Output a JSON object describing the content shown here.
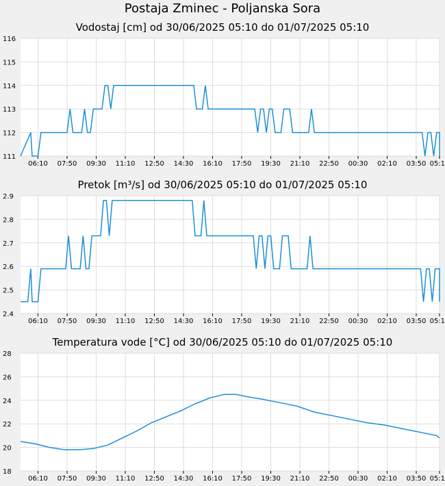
{
  "page": {
    "title": "Postaja Zminec - Poljanska Sora"
  },
  "colors": {
    "series": "#1a8fd6",
    "grid": "#dddddd",
    "plot_bg": "#ffffff",
    "page_bg": "#f0f0f0"
  },
  "chart_data": [
    {
      "type": "line",
      "title": "Vodostaj [cm] od 30/06/2025 05:10 do 01/07/2025 05:10",
      "xlabel": "",
      "ylabel": "",
      "xlim": [
        "05:10",
        "05:10"
      ],
      "x_ticks": [
        "06:10",
        "07:50",
        "09:30",
        "11:10",
        "12:50",
        "14:30",
        "16:10",
        "17:50",
        "19:30",
        "21:10",
        "22:50",
        "00:30",
        "02:10",
        "03:50",
        "05:10"
      ],
      "ylim": [
        111,
        116
      ],
      "y_ticks": [
        "116",
        "115",
        "114",
        "113",
        "112",
        "111"
      ],
      "grid": true,
      "legend": "none",
      "series": [
        {
          "steps": [
            [
              "05:10",
              111
            ],
            [
              "05:45",
              112
            ],
            [
              "05:50",
              111
            ],
            [
              "06:10",
              111
            ],
            [
              "06:20",
              112
            ],
            [
              "07:50",
              112
            ],
            [
              "08:00",
              113
            ],
            [
              "08:10",
              112
            ],
            [
              "08:40",
              112
            ],
            [
              "08:50",
              113
            ],
            [
              "09:00",
              112
            ],
            [
              "09:10",
              112
            ],
            [
              "09:20",
              113
            ],
            [
              "09:50",
              113
            ],
            [
              "10:00",
              114
            ],
            [
              "10:10",
              114
            ],
            [
              "10:20",
              113
            ],
            [
              "10:30",
              114
            ],
            [
              "15:05",
              114
            ],
            [
              "15:15",
              113
            ],
            [
              "15:35",
              113
            ],
            [
              "15:45",
              114
            ],
            [
              "15:55",
              113
            ],
            [
              "18:35",
              113
            ],
            [
              "18:45",
              112
            ],
            [
              "18:55",
              113
            ],
            [
              "19:05",
              113
            ],
            [
              "19:15",
              112
            ],
            [
              "19:25",
              113
            ],
            [
              "19:35",
              113
            ],
            [
              "19:45",
              112
            ],
            [
              "20:05",
              112
            ],
            [
              "20:15",
              113
            ],
            [
              "20:35",
              113
            ],
            [
              "20:45",
              112
            ],
            [
              "21:40",
              112
            ],
            [
              "21:50",
              113
            ],
            [
              "22:00",
              112
            ],
            [
              "04:10",
              112
            ],
            [
              "04:20",
              111
            ],
            [
              "04:30",
              112
            ],
            [
              "04:40",
              112
            ],
            [
              "04:50",
              111
            ],
            [
              "05:00",
              112
            ],
            [
              "05:20",
              112
            ],
            [
              "05:30",
              111
            ],
            [
              "05:40",
              112
            ]
          ]
        }
      ]
    },
    {
      "type": "line",
      "title": "Pretok [m³/s] od 30/06/2025 05:10 do 01/07/2025 05:10",
      "xlabel": "",
      "ylabel": "",
      "xlim": [
        "05:10",
        "05:10"
      ],
      "x_ticks": [
        "06:10",
        "07:50",
        "09:30",
        "11:10",
        "12:50",
        "14:30",
        "16:10",
        "17:50",
        "19:30",
        "21:10",
        "22:50",
        "00:30",
        "02:10",
        "03:50",
        "05:10"
      ],
      "ylim": [
        2.4,
        2.9
      ],
      "y_ticks": [
        "2.9",
        "2.8",
        "2.7",
        "2.6",
        "2.5",
        "2.4"
      ],
      "grid": true,
      "legend": "none",
      "series": [
        {
          "steps": [
            [
              "05:10",
              2.45
            ],
            [
              "05:35",
              2.45
            ],
            [
              "05:45",
              2.59
            ],
            [
              "05:50",
              2.45
            ],
            [
              "06:10",
              2.45
            ],
            [
              "06:20",
              2.59
            ],
            [
              "07:45",
              2.59
            ],
            [
              "07:55",
              2.73
            ],
            [
              "08:05",
              2.59
            ],
            [
              "08:35",
              2.59
            ],
            [
              "08:45",
              2.73
            ],
            [
              "08:55",
              2.59
            ],
            [
              "09:05",
              2.59
            ],
            [
              "09:15",
              2.73
            ],
            [
              "09:45",
              2.73
            ],
            [
              "09:55",
              2.88
            ],
            [
              "10:05",
              2.88
            ],
            [
              "10:15",
              2.73
            ],
            [
              "10:25",
              2.88
            ],
            [
              "15:00",
              2.88
            ],
            [
              "15:10",
              2.73
            ],
            [
              "15:30",
              2.73
            ],
            [
              "15:40",
              2.88
            ],
            [
              "15:50",
              2.73
            ],
            [
              "18:30",
              2.73
            ],
            [
              "18:40",
              2.59
            ],
            [
              "18:50",
              2.73
            ],
            [
              "19:00",
              2.73
            ],
            [
              "19:10",
              2.59
            ],
            [
              "19:20",
              2.73
            ],
            [
              "19:30",
              2.73
            ],
            [
              "19:40",
              2.59
            ],
            [
              "20:00",
              2.59
            ],
            [
              "20:10",
              2.73
            ],
            [
              "20:30",
              2.73
            ],
            [
              "20:40",
              2.59
            ],
            [
              "21:35",
              2.59
            ],
            [
              "21:45",
              2.73
            ],
            [
              "21:55",
              2.59
            ],
            [
              "04:05",
              2.59
            ],
            [
              "04:15",
              2.45
            ],
            [
              "04:25",
              2.59
            ],
            [
              "04:35",
              2.59
            ],
            [
              "04:45",
              2.45
            ],
            [
              "04:55",
              2.59
            ],
            [
              "05:15",
              2.59
            ],
            [
              "05:25",
              2.45
            ],
            [
              "05:40",
              2.59
            ]
          ]
        }
      ]
    },
    {
      "type": "line",
      "title": "Temperatura vode [°C] od 30/06/2025 05:10 do 01/07/2025 05:10",
      "xlabel": "",
      "ylabel": "",
      "xlim": [
        "05:10",
        "05:10"
      ],
      "x_ticks": [
        "06:10",
        "07:50",
        "09:30",
        "11:10",
        "12:50",
        "14:30",
        "16:10",
        "17:50",
        "19:30",
        "21:10",
        "22:50",
        "00:30",
        "02:10",
        "03:50",
        "05:10"
      ],
      "ylim": [
        18,
        28
      ],
      "y_ticks": [
        "28",
        "26",
        "24",
        "22",
        "20",
        "18"
      ],
      "grid": true,
      "legend": "none",
      "series": [
        {
          "points": [
            [
              "05:10",
              20.5
            ],
            [
              "06:00",
              20.3
            ],
            [
              "06:50",
              20.0
            ],
            [
              "07:40",
              19.8
            ],
            [
              "08:30",
              19.8
            ],
            [
              "09:20",
              19.9
            ],
            [
              "10:10",
              20.2
            ],
            [
              "11:00",
              20.8
            ],
            [
              "11:50",
              21.4
            ],
            [
              "12:40",
              22.1
            ],
            [
              "13:30",
              22.6
            ],
            [
              "14:20",
              23.1
            ],
            [
              "15:10",
              23.7
            ],
            [
              "16:00",
              24.2
            ],
            [
              "16:50",
              24.5
            ],
            [
              "17:30",
              24.5
            ],
            [
              "18:10",
              24.3
            ],
            [
              "19:00",
              24.1
            ],
            [
              "20:00",
              23.8
            ],
            [
              "21:00",
              23.5
            ],
            [
              "22:00",
              23.0
            ],
            [
              "23:00",
              22.7
            ],
            [
              "00:00",
              22.4
            ],
            [
              "01:00",
              22.1
            ],
            [
              "02:00",
              21.9
            ],
            [
              "03:00",
              21.6
            ],
            [
              "04:00",
              21.3
            ],
            [
              "05:00",
              21.0
            ],
            [
              "05:40",
              20.8
            ]
          ]
        }
      ]
    }
  ]
}
